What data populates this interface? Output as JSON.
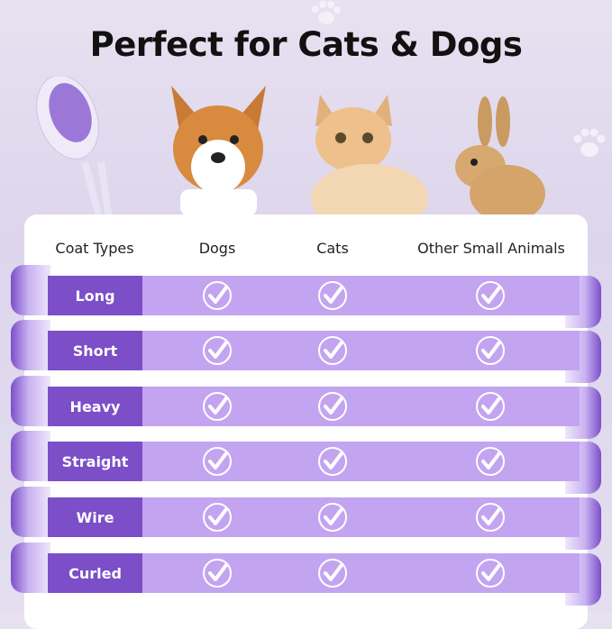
{
  "title": "Perfect for Cats & Dogs",
  "headers": [
    "Coat Types",
    "Dogs",
    "Cats",
    "Other Small Animals"
  ],
  "rows": [
    {
      "label": "Long",
      "dogs": true,
      "cats": true,
      "other": true
    },
    {
      "label": "Short",
      "dogs": true,
      "cats": true,
      "other": true
    },
    {
      "label": "Heavy",
      "dogs": true,
      "cats": true,
      "other": true
    },
    {
      "label": "Straight",
      "dogs": true,
      "cats": true,
      "other": true
    },
    {
      "label": "Wire",
      "dogs": true,
      "cats": true,
      "other": true
    },
    {
      "label": "Curled",
      "dogs": true,
      "cats": true,
      "other": true
    }
  ],
  "colors": {
    "label_bg": "#7c4ec8",
    "band_bg": "#c3a4f0",
    "background": "#e2dbee"
  },
  "icons": [
    "check-circle-icon",
    "paw-icon"
  ]
}
